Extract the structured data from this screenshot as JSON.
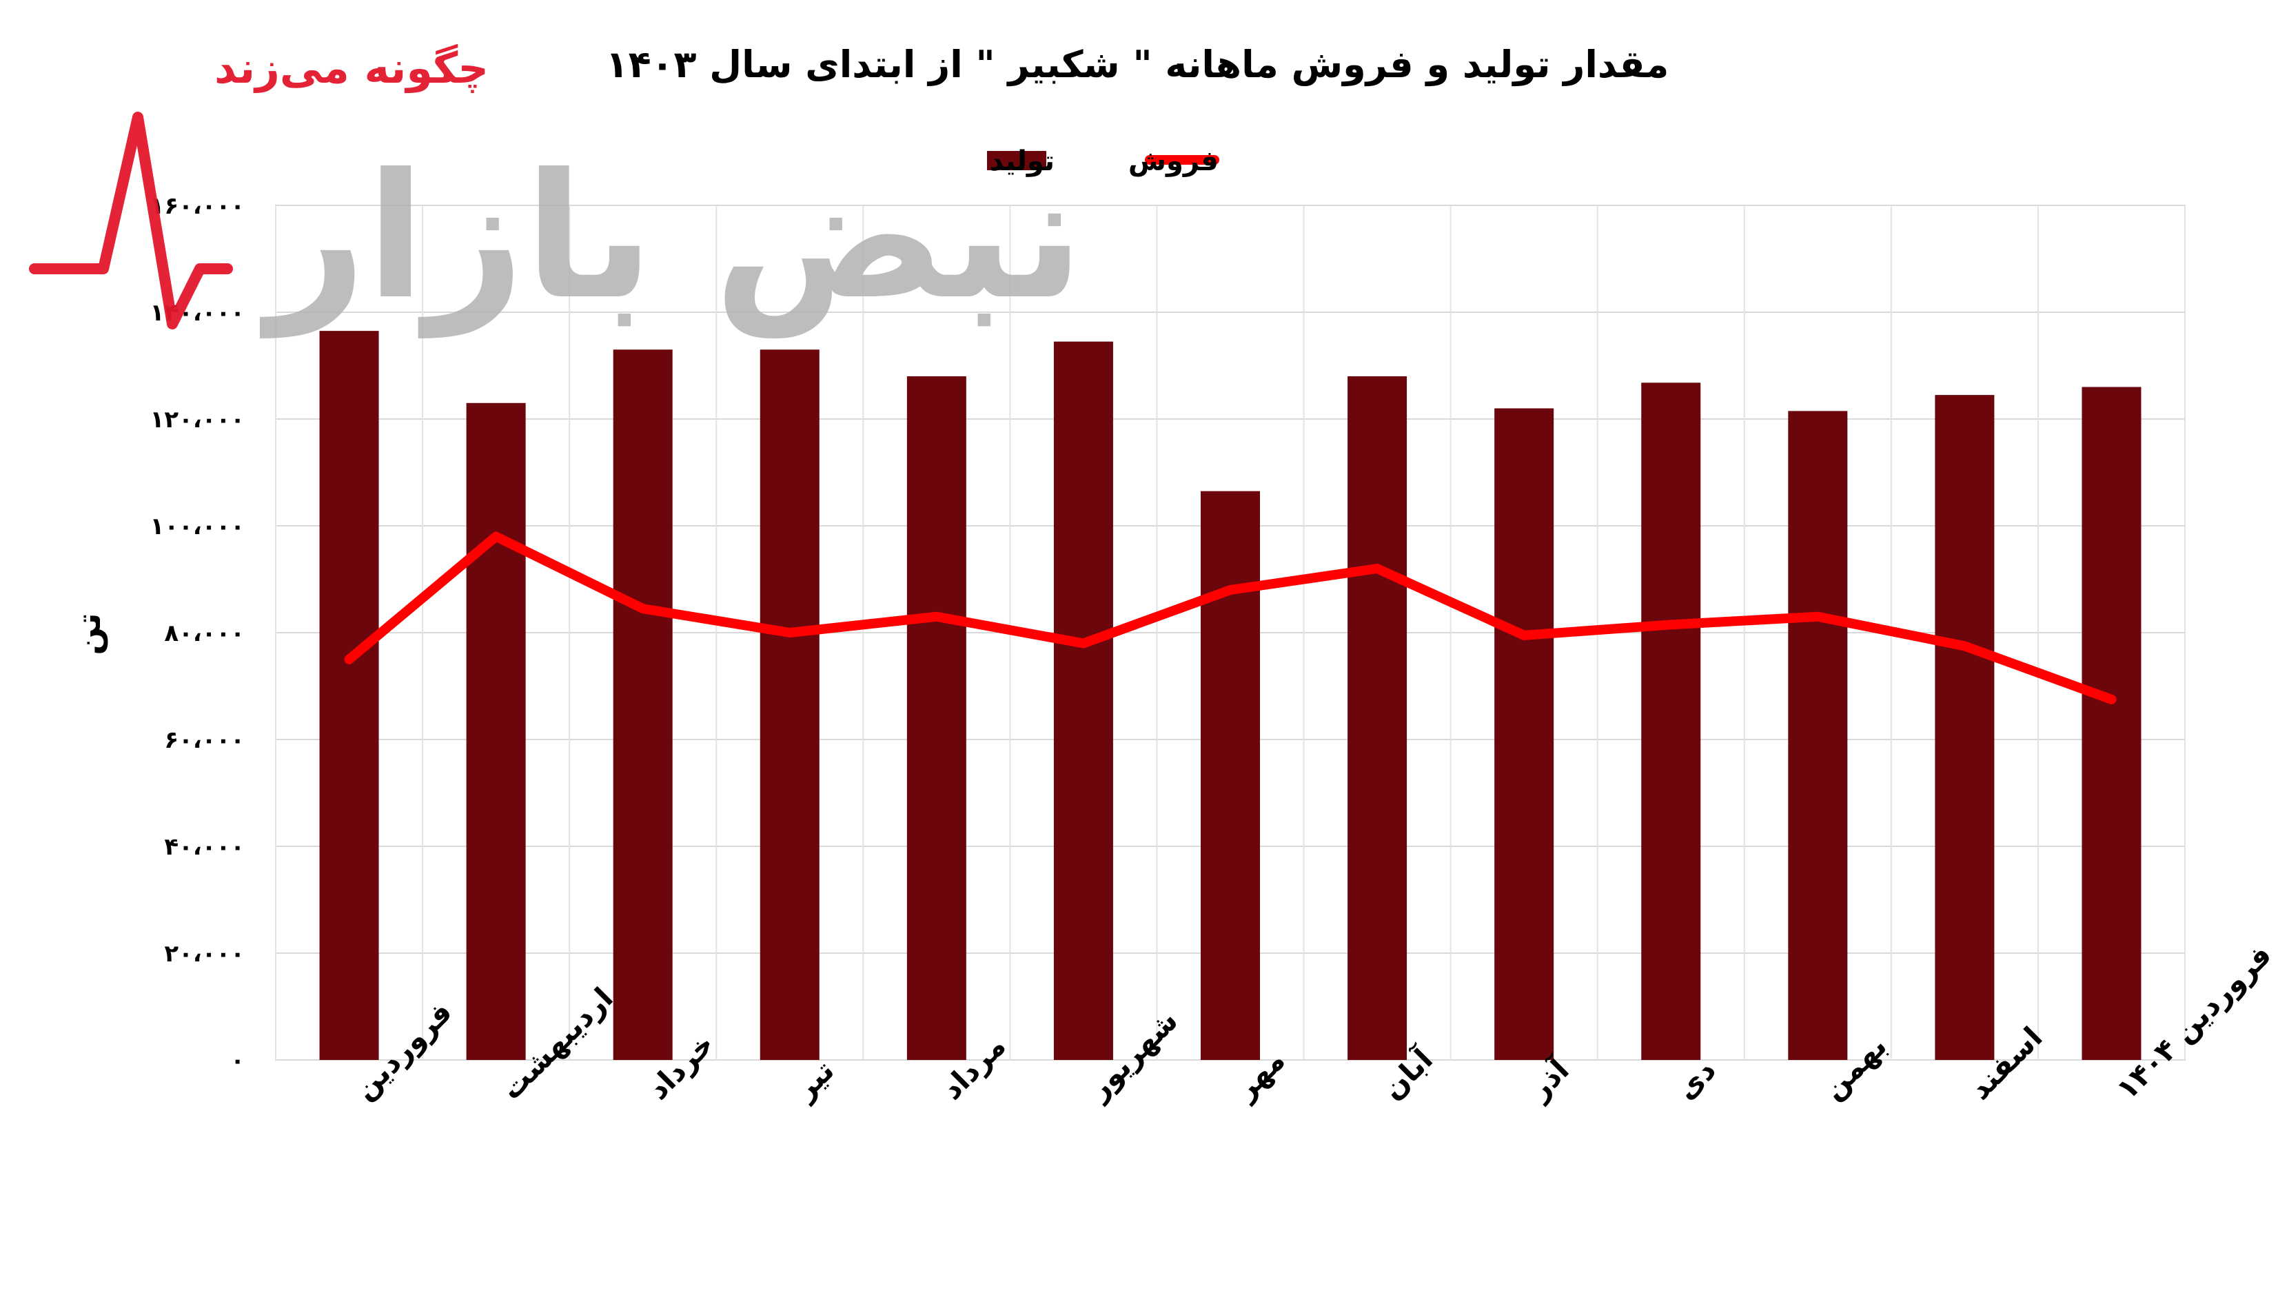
{
  "watermark": {
    "tagline": "چگونه می‌زند",
    "brand": "نبض بازار",
    "colors": {
      "red": "#e3172b",
      "gray": "#b3b3b3"
    }
  },
  "chart_data": {
    "type": "bar",
    "title": "مقدار تولید و فروش ماهانه \" شکبیر \" از ابتدای سال ۱۴۰۳",
    "ylabel": "تن",
    "xlabel": "",
    "ylim": [
      0,
      160000
    ],
    "yticks": [
      0,
      20000,
      40000,
      60000,
      80000,
      100000,
      120000,
      140000,
      160000
    ],
    "ytick_labels": [
      "۰",
      "۲۰،۰۰۰",
      "۴۰،۰۰۰",
      "۶۰،۰۰۰",
      "۸۰،۰۰۰",
      "۱۰۰،۰۰۰",
      "۱۲۰،۰۰۰",
      "۱۴۰،۰۰۰",
      "۱۶۰،۰۰۰"
    ],
    "grid": true,
    "legend_position": "top-center",
    "categories": [
      "فروردین",
      "اردیبهشت",
      "خرداد",
      "تیر",
      "مرداد",
      "شهریور",
      "مهر",
      "آبان",
      "آذر",
      "دی",
      "بهمن",
      "اسفند",
      "فروردین ۱۴۰۴"
    ],
    "series": [
      {
        "name": "تولید",
        "type": "bar",
        "color": "#6b070c",
        "values": [
          136500,
          123000,
          133000,
          133000,
          128000,
          134500,
          106500,
          128000,
          122000,
          126800,
          121500,
          124500,
          126000
        ]
      },
      {
        "name": "فروش",
        "type": "line",
        "color": "#ff0000",
        "values": [
          75000,
          98000,
          84500,
          80000,
          83000,
          78000,
          88000,
          92000,
          79500,
          81500,
          83000,
          77500,
          67500
        ]
      }
    ]
  }
}
